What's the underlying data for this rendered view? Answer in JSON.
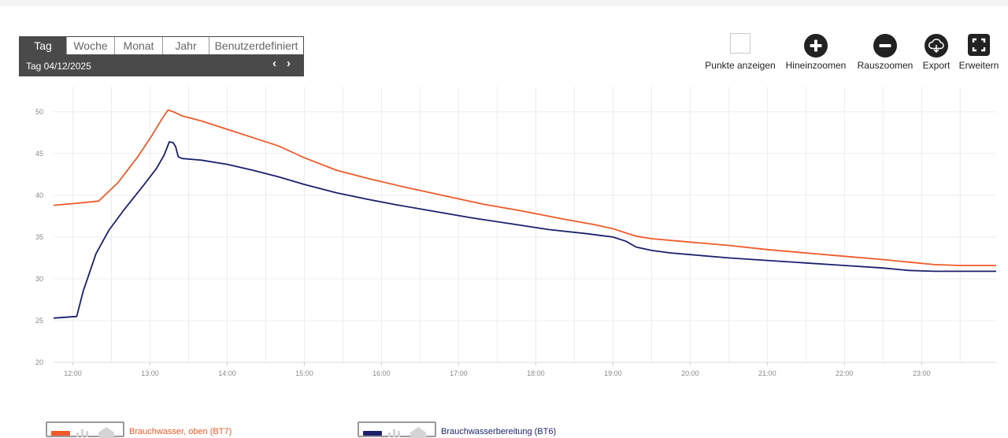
{
  "period": {
    "tabs": [
      "Tag",
      "Woche",
      "Monat",
      "Jahr",
      "Benutzerdefiniert"
    ],
    "active": "Tag",
    "date_label": "Tag  04/12/2025",
    "prev_arrow": "‹",
    "next_arrow": "›"
  },
  "toolbar": {
    "show_points": "Punkte anzeigen",
    "zoom_in": "Hineinzoomen",
    "zoom_out": "Rauszoomen",
    "export": "Export",
    "expand": "Erweitern"
  },
  "icons": {
    "show_points": "checkbox-icon",
    "zoom_in": "plus-circle-icon",
    "zoom_out": "minus-circle-icon",
    "export": "cloud-download-icon",
    "expand": "expand-icon"
  },
  "chart_data": {
    "type": "line",
    "title": "",
    "xlabel": "",
    "ylabel": "",
    "x_ticks": [
      "12:00",
      "13:00",
      "14:00",
      "15:00",
      "16:00",
      "17:00",
      "18:00",
      "19:00",
      "20:00",
      "21:00",
      "22:00",
      "23:00"
    ],
    "y_ticks": [
      20,
      25,
      30,
      35,
      40,
      45,
      50
    ],
    "xlim": [
      "11:45",
      "23:58"
    ],
    "ylim": [
      20,
      53
    ],
    "grid": true,
    "legend_position": "bottom-left",
    "series": [
      {
        "name": "Brauchwasser, oben (BT7)",
        "color": "#ef5a28",
        "points": [
          [
            "11:45",
            38.8
          ],
          [
            "12:00",
            39.0
          ],
          [
            "12:20",
            39.3
          ],
          [
            "12:35",
            41.5
          ],
          [
            "12:50",
            44.5
          ],
          [
            "13:00",
            46.8
          ],
          [
            "13:10",
            49.3
          ],
          [
            "13:14",
            50.2
          ],
          [
            "13:18",
            50.0
          ],
          [
            "13:25",
            49.5
          ],
          [
            "13:40",
            48.9
          ],
          [
            "14:00",
            47.9
          ],
          [
            "14:20",
            46.9
          ],
          [
            "14:40",
            45.9
          ],
          [
            "15:00",
            44.5
          ],
          [
            "15:25",
            43.0
          ],
          [
            "15:50",
            42.0
          ],
          [
            "16:20",
            40.9
          ],
          [
            "16:50",
            39.9
          ],
          [
            "17:20",
            38.9
          ],
          [
            "17:50",
            38.1
          ],
          [
            "18:20",
            37.2
          ],
          [
            "18:45",
            36.5
          ],
          [
            "19:00",
            36.0
          ],
          [
            "19:10",
            35.5
          ],
          [
            "19:18",
            35.1
          ],
          [
            "19:30",
            34.8
          ],
          [
            "20:00",
            34.4
          ],
          [
            "20:30",
            34.0
          ],
          [
            "21:00",
            33.5
          ],
          [
            "21:30",
            33.1
          ],
          [
            "22:00",
            32.7
          ],
          [
            "22:30",
            32.3
          ],
          [
            "22:50",
            32.0
          ],
          [
            "23:10",
            31.7
          ],
          [
            "23:30",
            31.6
          ],
          [
            "23:58",
            31.6
          ]
        ]
      },
      {
        "name": "Brauchwasserbereitung (BT6)",
        "color": "#1c1f6b",
        "points": [
          [
            "11:45",
            25.3
          ],
          [
            "12:03",
            25.5
          ],
          [
            "12:08",
            28.5
          ],
          [
            "12:18",
            33.0
          ],
          [
            "12:28",
            35.8
          ],
          [
            "12:40",
            38.3
          ],
          [
            "12:55",
            41.2
          ],
          [
            "13:05",
            43.2
          ],
          [
            "13:11",
            44.8
          ],
          [
            "13:15",
            46.4
          ],
          [
            "13:18",
            46.3
          ],
          [
            "13:20",
            45.8
          ],
          [
            "13:22",
            44.6
          ],
          [
            "13:25",
            44.4
          ],
          [
            "13:40",
            44.2
          ],
          [
            "14:00",
            43.7
          ],
          [
            "14:20",
            43.0
          ],
          [
            "14:40",
            42.2
          ],
          [
            "15:00",
            41.3
          ],
          [
            "15:25",
            40.3
          ],
          [
            "15:50",
            39.5
          ],
          [
            "16:10",
            38.9
          ],
          [
            "16:40",
            38.1
          ],
          [
            "17:10",
            37.3
          ],
          [
            "17:40",
            36.6
          ],
          [
            "18:10",
            35.9
          ],
          [
            "18:40",
            35.4
          ],
          [
            "19:00",
            35.0
          ],
          [
            "19:10",
            34.5
          ],
          [
            "19:18",
            33.8
          ],
          [
            "19:30",
            33.4
          ],
          [
            "19:45",
            33.1
          ],
          [
            "20:00",
            32.9
          ],
          [
            "20:30",
            32.5
          ],
          [
            "21:00",
            32.2
          ],
          [
            "21:30",
            31.9
          ],
          [
            "22:00",
            31.6
          ],
          [
            "22:30",
            31.3
          ],
          [
            "22:50",
            31.0
          ],
          [
            "23:10",
            30.9
          ],
          [
            "23:30",
            30.9
          ],
          [
            "23:58",
            30.9
          ]
        ]
      }
    ]
  }
}
